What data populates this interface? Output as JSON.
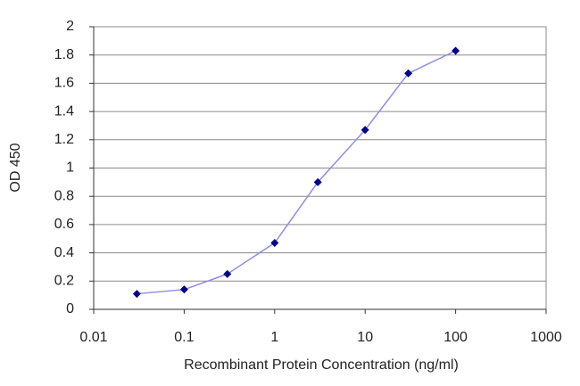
{
  "chart_data": {
    "type": "line",
    "xlabel": "Recombinant Protein Concentration (ng/ml)",
    "ylabel": "OD 450",
    "x": [
      0.03,
      0.1,
      0.3,
      1,
      3,
      10,
      30,
      100
    ],
    "values": [
      0.11,
      0.14,
      0.25,
      0.47,
      0.9,
      1.27,
      1.67,
      1.83
    ],
    "color": "#8c8ce6",
    "marker_color": "#00008b",
    "xscale": "log",
    "xlim": [
      0.01,
      1000
    ],
    "xticks": [
      0.01,
      0.1,
      1,
      10,
      100,
      1000
    ],
    "ylim": [
      0,
      2
    ],
    "yticks": [
      0,
      0.2,
      0.4,
      0.6,
      0.8,
      1,
      1.2,
      1.4,
      1.6,
      1.8,
      2
    ],
    "grid": true
  }
}
